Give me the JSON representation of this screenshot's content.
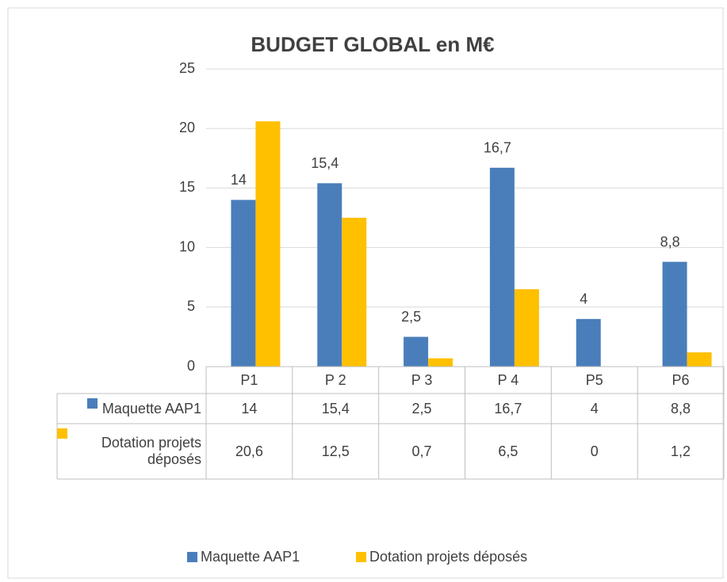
{
  "chart_data": {
    "type": "bar",
    "title": "BUDGET GLOBAL  en M€",
    "categories": [
      "P1",
      "P 2",
      "P 3",
      "P 4",
      "P5",
      "P6"
    ],
    "series": [
      {
        "name": "Maquette AAP1",
        "color": "#4a7ebb",
        "values": [
          14,
          15.4,
          2.5,
          16.7,
          4,
          8.8
        ],
        "value_labels": [
          "14",
          "15,4",
          "2,5",
          "16,7",
          "4",
          "8,8"
        ],
        "data_labels": true
      },
      {
        "name": "Dotation projets déposés",
        "color": "#ffc000",
        "values": [
          20.6,
          12.5,
          0.7,
          6.5,
          0,
          1.2
        ],
        "value_labels": [
          "20,6",
          "12,5",
          "0,7",
          "6,5",
          "0",
          "1,2"
        ],
        "data_labels": false
      }
    ],
    "ylim": [
      0,
      25
    ],
    "yticks": [
      0,
      5,
      10,
      15,
      20,
      25
    ],
    "grid": true,
    "data_table": true,
    "legend": "bottom"
  }
}
